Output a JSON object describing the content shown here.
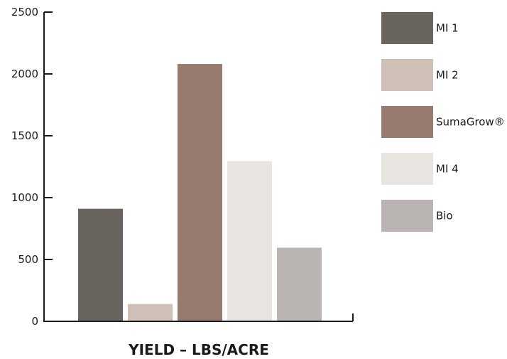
{
  "chart_data": {
    "type": "bar",
    "categories": [
      "MI 1",
      "MI 2",
      "SumaGrow®",
      "MI 4",
      "Bio"
    ],
    "values": [
      910,
      140,
      2080,
      1295,
      595
    ],
    "colors": [
      "#6a645e",
      "#d0bfb7",
      "#977b6e",
      "#e8e4df",
      "#bab4b2"
    ],
    "xlabel": "YIELD – LBS/ACRE",
    "ylim": [
      0,
      2500
    ],
    "yticks": [
      0,
      500,
      1000,
      1500,
      2000,
      2500
    ],
    "grid": false,
    "legend_position": "right"
  }
}
